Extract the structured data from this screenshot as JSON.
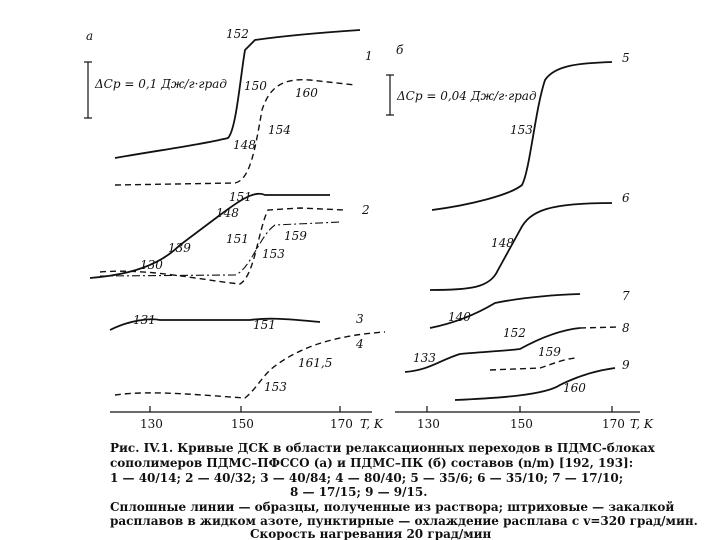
{
  "panels": [
    {
      "letter": "а",
      "scale": "ΔCp = 0,1 Дж/г·град",
      "curve_numbers": [
        "1",
        "2",
        "3",
        "4"
      ],
      "annotations": [
        "152",
        "150",
        "160",
        "154",
        "148",
        "151",
        "148",
        "139",
        "151",
        "159",
        "153",
        "130",
        "131",
        "151",
        "161,5",
        "153"
      ],
      "ticks": [
        "130",
        "150",
        "170"
      ],
      "axis_label": "T, K"
    },
    {
      "letter": "б",
      "scale": "ΔCp = 0,04 Дж/г·град",
      "curve_numbers": [
        "5",
        "6",
        "7",
        "8",
        "9"
      ],
      "annotations": [
        "153",
        "148",
        "140",
        "152",
        "159",
        "133",
        "160"
      ],
      "ticks": [
        "130",
        "150",
        "170"
      ],
      "axis_label": "T, K"
    }
  ],
  "caption": [
    "Рис. IV.1. Кривые ДСК в области релаксационных переходов в ПДМС-блоках",
    "сополимеров ПДМС–ПФССО (а) и ПДМС–ПК (б) составов (n/m) [192, 193]:",
    "1 — 40/14; 2 — 40/32; 3 — 40/84; 4 — 80/40; 5 — 35/6; 6 — 35/10; 7 — 17/10;",
    "8 — 17/15; 9 — 9/15.",
    "Сплошные линии — образцы, полученные из раствора; штриховые — закалкой",
    "расплавов в жидком азоте, пунктирные — охлаждение расплава с v=320 град/мин.",
    "Скорость нагревания 20 град/мин"
  ]
}
